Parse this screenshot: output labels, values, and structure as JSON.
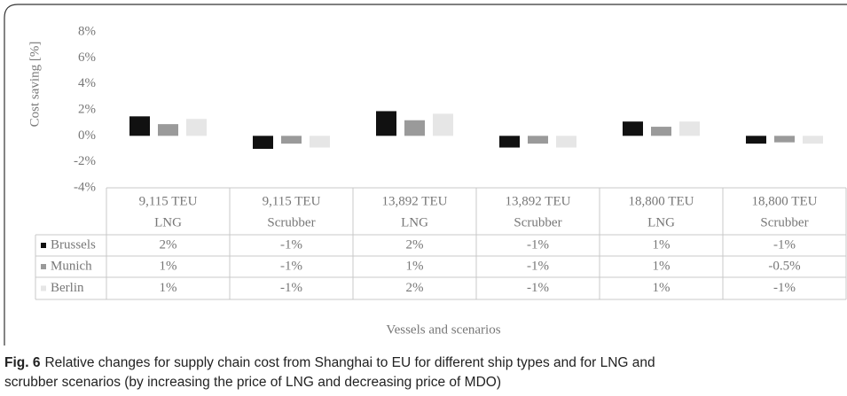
{
  "chart_data": {
    "type": "bar",
    "y_label": "Cost saving [%]",
    "x_label": "Vessels and scenarios",
    "categories": [
      [
        "9,115 TEU",
        "LNG"
      ],
      [
        "9,115 TEU",
        "Scrubber"
      ],
      [
        "13,892 TEU",
        "LNG"
      ],
      [
        "13,892 TEU",
        "Scrubber"
      ],
      [
        "18,800 TEU",
        "LNG"
      ],
      [
        "18,800 TEU",
        "Scrubber"
      ]
    ],
    "series": [
      {
        "name": "Brussels",
        "color": "#111111",
        "values": [
          1.5,
          -1.0,
          1.9,
          -0.9,
          1.1,
          -0.6
        ],
        "value_labels": [
          "2%",
          "-1%",
          "2%",
          "-1%",
          "1%",
          "-1%"
        ]
      },
      {
        "name": "Munich",
        "color": "#9a9a9a",
        "values": [
          0.9,
          -0.6,
          1.2,
          -0.6,
          0.7,
          -0.5
        ],
        "value_labels": [
          "1%",
          "-1%",
          "1%",
          "-1%",
          "1%",
          "-0.5%"
        ]
      },
      {
        "name": "Berlin",
        "color": "#e6e6e6",
        "values": [
          1.3,
          -0.9,
          1.7,
          -0.9,
          1.1,
          -0.6
        ],
        "value_labels": [
          "1%",
          "-1%",
          "2%",
          "-1%",
          "1%",
          "-1%"
        ]
      }
    ],
    "ylim": [
      -4,
      8
    ],
    "yticks": [
      {
        "value": -4,
        "label": "-4%"
      },
      {
        "value": -2,
        "label": "-2%"
      },
      {
        "value": 0,
        "label": "0%"
      },
      {
        "value": 2,
        "label": "2%"
      },
      {
        "value": 4,
        "label": "4%"
      },
      {
        "value": 6,
        "label": "6%"
      },
      {
        "value": 8,
        "label": "8%"
      }
    ]
  },
  "caption": {
    "label": "Fig. 6",
    "text": "Relative changes for supply chain cost from Shanghai to EU for different ship types and for LNG and",
    "text2": "scrubber scenarios (by increasing the price of LNG and decreasing price of MDO)"
  }
}
